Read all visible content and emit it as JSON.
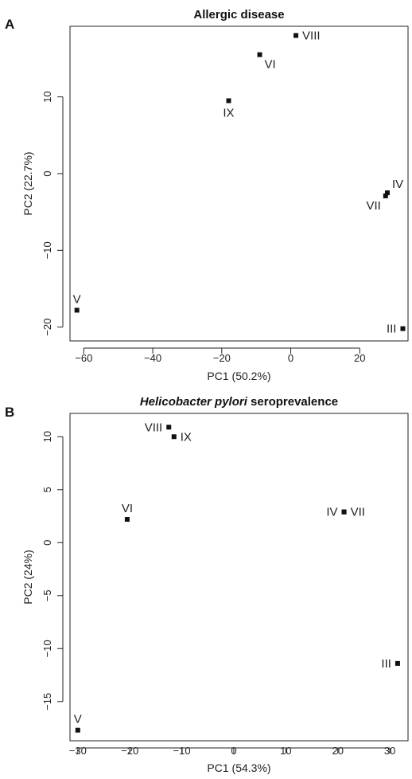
{
  "chart_data": [
    {
      "type": "scatter",
      "panel": "A",
      "title": "Allergic disease",
      "title_parts": [
        {
          "text": "Allergic disease",
          "italic": false
        }
      ],
      "xlabel": "PC1 (50.2%)",
      "ylabel": "PC2 (22.7%)",
      "xlim": [
        -64,
        34
      ],
      "ylim": [
        -21.8,
        19.2
      ],
      "xticks": [
        -60,
        -40,
        -20,
        0,
        20
      ],
      "yticks": [
        -20,
        -10,
        0,
        10
      ],
      "points": [
        {
          "label": "VIII",
          "x": 1.5,
          "y": 18.0,
          "label_pos": "right"
        },
        {
          "label": "VI",
          "x": -9.0,
          "y": 15.5,
          "label_pos": "below-right"
        },
        {
          "label": "IX",
          "x": -18.0,
          "y": 9.5,
          "label_pos": "below"
        },
        {
          "label": "IV",
          "x": 28.0,
          "y": -2.5,
          "label_pos": "above-right"
        },
        {
          "label": "VII",
          "x": 27.5,
          "y": -2.9,
          "label_pos": "below-left"
        },
        {
          "label": "V",
          "x": -62.0,
          "y": -17.8,
          "label_pos": "above"
        },
        {
          "label": "III",
          "x": 32.5,
          "y": -20.2,
          "label_pos": "left"
        }
      ]
    },
    {
      "type": "scatter",
      "panel": "B",
      "title": "Helicobacter pylori seroprevalence",
      "title_parts": [
        {
          "text": "Helicobacter pylori",
          "italic": true
        },
        {
          "text": " seroprevalence",
          "italic": false
        }
      ],
      "xlabel": "PC1 (54.3%)",
      "ylabel": "PC2 (24%)",
      "xlim": [
        -31.5,
        33.5
      ],
      "ylim": [
        -18.7,
        12.2
      ],
      "xticks": [
        -30,
        -20,
        -10,
        0,
        10,
        20,
        30
      ],
      "yticks": [
        -15,
        -10,
        -5,
        0,
        5,
        10
      ],
      "points": [
        {
          "label": "VIII",
          "x": -12.5,
          "y": 10.9,
          "label_pos": "left"
        },
        {
          "label": "IX",
          "x": -11.5,
          "y": 10.0,
          "label_pos": "right"
        },
        {
          "label": "VI",
          "x": -20.5,
          "y": 2.2,
          "label_pos": "above"
        },
        {
          "label": "IV",
          "x": 21.2,
          "y": 2.9,
          "label_pos": "left"
        },
        {
          "label": "VII",
          "x": 21.2,
          "y": 2.9,
          "label_pos": "right"
        },
        {
          "label": "III",
          "x": 31.5,
          "y": -11.4,
          "label_pos": "left"
        },
        {
          "label": "V",
          "x": -30.0,
          "y": -17.7,
          "label_pos": "above"
        }
      ]
    }
  ]
}
